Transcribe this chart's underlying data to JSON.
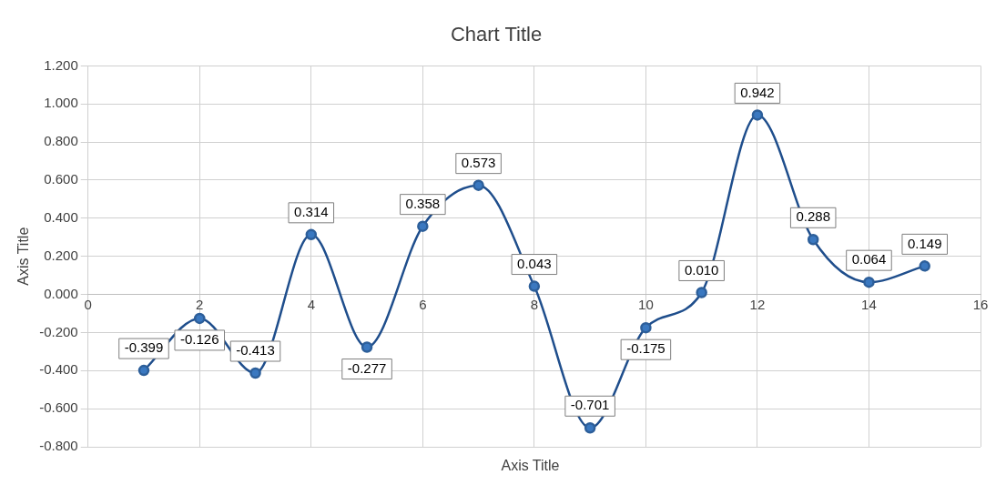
{
  "chart_data": {
    "type": "line",
    "title": "Chart Title",
    "xlabel": "Axis Title",
    "ylabel": "Axis Title",
    "x": [
      1,
      2,
      3,
      4,
      5,
      6,
      7,
      8,
      9,
      10,
      11,
      12,
      13,
      14,
      15
    ],
    "series": [
      {
        "color": "#1f4e8c",
        "values": [
          -0.399,
          -0.126,
          -0.413,
          0.314,
          -0.277,
          0.358,
          0.573,
          0.043,
          -0.701,
          -0.175,
          0.01,
          0.942,
          0.288,
          0.064,
          0.149
        ],
        "value_labels": [
          "-0.399",
          "-0.126",
          "-0.413",
          "0.314",
          "-0.277",
          "0.358",
          "0.573",
          "0.043",
          "-0.701",
          "-0.175",
          "0.010",
          "0.942",
          "0.288",
          "0.064",
          "0.149"
        ]
      }
    ],
    "xlim": [
      0,
      16
    ],
    "xticks": [
      0,
      2,
      4,
      6,
      8,
      10,
      12,
      14,
      16
    ],
    "ylim": [
      -0.8,
      1.2
    ],
    "yticks": [
      {
        "value": -0.8,
        "label": "-0.800"
      },
      {
        "value": -0.6,
        "label": "-0.600"
      },
      {
        "value": -0.4,
        "label": "-0.400"
      },
      {
        "value": -0.2,
        "label": "-0.200"
      },
      {
        "value": 0,
        "label": "0.000"
      },
      {
        "value": 0.2,
        "label": "0.200"
      },
      {
        "value": 0.4,
        "label": "0.400"
      },
      {
        "value": 0.6,
        "label": "0.600"
      },
      {
        "value": 0.8,
        "label": "0.800"
      },
      {
        "value": 1,
        "label": "1.000"
      },
      {
        "value": 1.2,
        "label": "1.200"
      }
    ],
    "grid": true,
    "legend": false,
    "marker": "circle",
    "line_style": "solid"
  }
}
